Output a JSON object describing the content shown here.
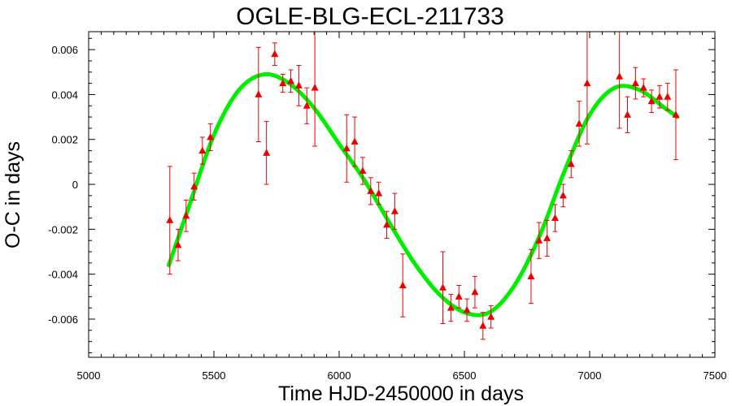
{
  "chart_data": {
    "type": "scatter",
    "title": "OGLE-BLG-ECL-211733",
    "xlabel": "Time HJD-2450000 in days",
    "ylabel": "O-C in days",
    "xlim": [
      5000,
      7500
    ],
    "ylim": [
      -0.0077,
      0.0068
    ],
    "x_ticks": [
      5000,
      5500,
      6000,
      6500,
      7000,
      7500
    ],
    "x_tick_labels": [
      "5000",
      "5500",
      "6000",
      "6500",
      "7000",
      "7500"
    ],
    "y_ticks": [
      -0.006,
      -0.004,
      -0.002,
      0,
      0.002,
      0.004,
      0.006
    ],
    "y_tick_labels": [
      "-0.006",
      "-0.004",
      "-0.002",
      "0",
      "0.002",
      "0.004",
      "0.006"
    ],
    "grid": false,
    "colors": {
      "points": "#ee0000",
      "fit": "#00ee00",
      "axes": "#000000"
    },
    "series": [
      {
        "kind": "points-with-errorbars",
        "marker": "triangle",
        "points": [
          {
            "x": 5324,
            "y": -0.0016,
            "err": 0.0024
          },
          {
            "x": 5357,
            "y": -0.0027,
            "err": 0.0007
          },
          {
            "x": 5389,
            "y": -0.0014,
            "err": 0.0007
          },
          {
            "x": 5421,
            "y": -0.0001,
            "err": 0.0006
          },
          {
            "x": 5454,
            "y": 0.0015,
            "err": 0.0006
          },
          {
            "x": 5486,
            "y": 0.0021,
            "err": 0.0006
          },
          {
            "x": 5678,
            "y": 0.004,
            "err": 0.0021
          },
          {
            "x": 5710,
            "y": 0.0014,
            "err": 0.0014
          },
          {
            "x": 5743,
            "y": 0.0058,
            "err": 0.0005
          },
          {
            "x": 5775,
            "y": 0.0045,
            "err": 0.0004
          },
          {
            "x": 5807,
            "y": 0.0046,
            "err": 0.0005
          },
          {
            "x": 5839,
            "y": 0.0044,
            "err": 0.0009
          },
          {
            "x": 5871,
            "y": 0.0035,
            "err": 0.0008
          },
          {
            "x": 5903,
            "y": 0.0043,
            "err": 0.0026
          },
          {
            "x": 6030,
            "y": 0.0016,
            "err": 0.0015
          },
          {
            "x": 6062,
            "y": 0.0019,
            "err": 0.0011
          },
          {
            "x": 6094,
            "y": 0.0006,
            "err": 0.0006
          },
          {
            "x": 6126,
            "y": -0.0003,
            "err": 0.0006
          },
          {
            "x": 6158,
            "y": -0.0004,
            "err": 0.0005
          },
          {
            "x": 6190,
            "y": -0.0018,
            "err": 0.0006
          },
          {
            "x": 6222,
            "y": -0.0012,
            "err": 0.0008
          },
          {
            "x": 6254,
            "y": -0.0045,
            "err": 0.0014
          },
          {
            "x": 6414,
            "y": -0.0046,
            "err": 0.0016
          },
          {
            "x": 6446,
            "y": -0.0055,
            "err": 0.0006
          },
          {
            "x": 6478,
            "y": -0.005,
            "err": 0.0005
          },
          {
            "x": 6510,
            "y": -0.0056,
            "err": 0.0005
          },
          {
            "x": 6542,
            "y": -0.0048,
            "err": 0.0007
          },
          {
            "x": 6574,
            "y": -0.0063,
            "err": 0.0006
          },
          {
            "x": 6606,
            "y": -0.0059,
            "err": 0.0005
          },
          {
            "x": 6766,
            "y": -0.0041,
            "err": 0.0012
          },
          {
            "x": 6798,
            "y": -0.0025,
            "err": 0.0008
          },
          {
            "x": 6830,
            "y": -0.0024,
            "err": 0.0008
          },
          {
            "x": 6862,
            "y": -0.0015,
            "err": 0.0006
          },
          {
            "x": 6894,
            "y": -0.0005,
            "err": 0.0005
          },
          {
            "x": 6926,
            "y": 0.0009,
            "err": 0.0006
          },
          {
            "x": 6958,
            "y": 0.0027,
            "err": 0.001
          },
          {
            "x": 6990,
            "y": 0.0045,
            "err": 0.0027
          },
          {
            "x": 7119,
            "y": 0.0048,
            "err": 0.0023
          },
          {
            "x": 7151,
            "y": 0.0031,
            "err": 0.0008
          },
          {
            "x": 7183,
            "y": 0.0045,
            "err": 0.0007
          },
          {
            "x": 7215,
            "y": 0.0043,
            "err": 0.0004
          },
          {
            "x": 7247,
            "y": 0.0037,
            "err": 0.0005
          },
          {
            "x": 7279,
            "y": 0.0039,
            "err": 0.0005
          },
          {
            "x": 7311,
            "y": 0.0039,
            "err": 0.0006
          },
          {
            "x": 7344,
            "y": 0.0031,
            "err": 0.002
          }
        ]
      },
      {
        "kind": "fit-curve",
        "x": [
          5320,
          5400,
          5500,
          5600,
          5700,
          5800,
          5900,
          6000,
          6100,
          6200,
          6300,
          6400,
          6500,
          6600,
          6700,
          6800,
          6900,
          7000,
          7100,
          7200,
          7300,
          7350
        ],
        "y": [
          -0.0036,
          -0.001,
          0.0022,
          0.0042,
          0.0049,
          0.0045,
          0.0034,
          0.0018,
          0.0002,
          -0.0017,
          -0.0035,
          -0.0049,
          -0.0057,
          -0.0057,
          -0.0045,
          -0.0023,
          0.0006,
          0.0031,
          0.0043,
          0.0042,
          0.0034,
          0.003
        ]
      }
    ]
  }
}
